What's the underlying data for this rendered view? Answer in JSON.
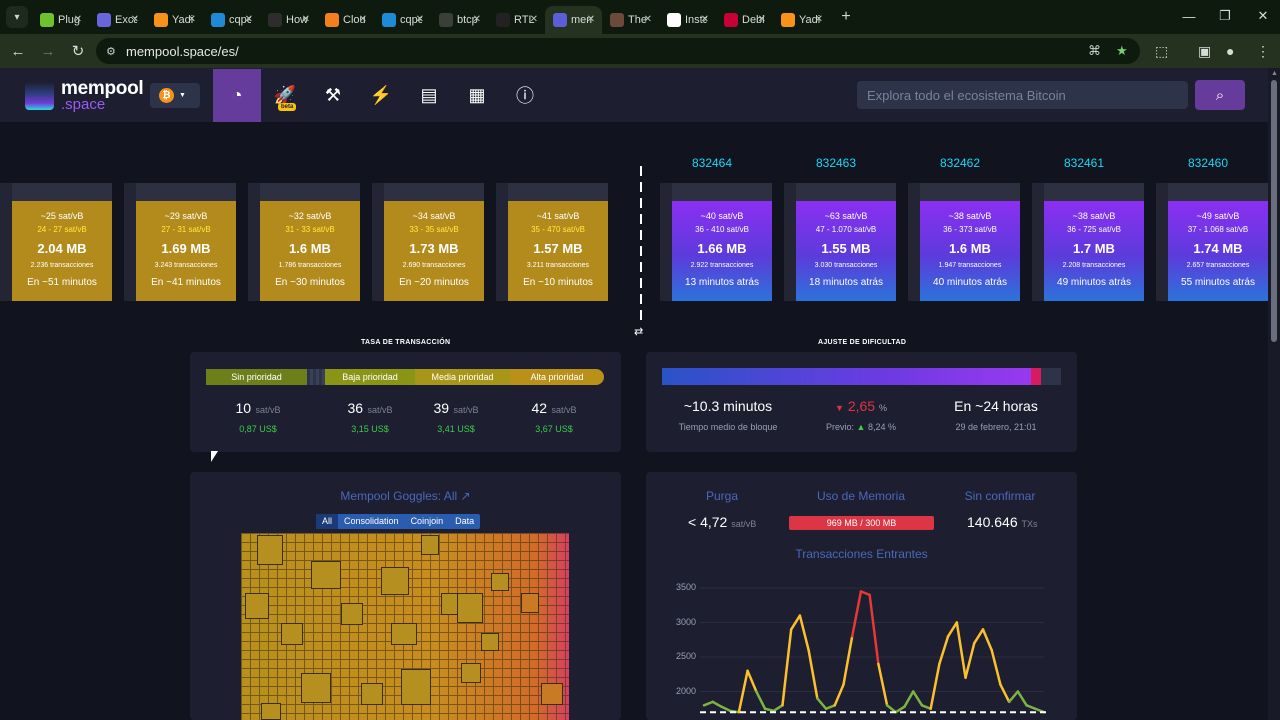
{
  "browser": {
    "tabs": [
      {
        "label": "Plug",
        "icon": "plug-icon",
        "color": "#6fc22c"
      },
      {
        "label": "Exca",
        "icon": "excalidraw-icon",
        "color": "#6965db"
      },
      {
        "label": "Yadi",
        "icon": "yadio-icon",
        "color": "#f7931a"
      },
      {
        "label": "cqpe",
        "icon": "ce-icon",
        "color": "#1f8ad6"
      },
      {
        "label": "How",
        "icon": "github-icon",
        "color": "#2d2d2d"
      },
      {
        "label": "Clou",
        "icon": "cloudflare-icon",
        "color": "#f38020"
      },
      {
        "label": "cqpe",
        "icon": "ce-icon",
        "color": "#1f8ad6"
      },
      {
        "label": "btcp",
        "icon": "btcpay-icon",
        "color": "#3a3f3a"
      },
      {
        "label": "RTL",
        "icon": "rtl-icon",
        "color": "#222"
      },
      {
        "label": "mem",
        "icon": "mempool-icon",
        "color": "#5a5fd6",
        "active": true
      },
      {
        "label": "The",
        "icon": "avatar-icon",
        "color": "#6b4a3a"
      },
      {
        "label": "Insta",
        "icon": "notion-icon",
        "color": "#ffffff"
      },
      {
        "label": "Debi",
        "icon": "debian-icon",
        "color": "#c70036"
      },
      {
        "label": "Yadi",
        "icon": "yadio-icon",
        "color": "#f7931a"
      }
    ],
    "url": "mempool.space/es/"
  },
  "header": {
    "logo_text": "mempool",
    "logo_sub": ".space",
    "network_coin": "₿",
    "beta_label": "beta",
    "search_placeholder": "Explora todo el ecosistema Bitcoin"
  },
  "mempool_blocks": [
    {
      "fee": "~25 sat/vB",
      "range": "24 - 27 sat/vB",
      "size": "2.04 MB",
      "tx": "2.236 transacciones",
      "time": "En ~51 minutos"
    },
    {
      "fee": "~29 sat/vB",
      "range": "27 - 31 sat/vB",
      "size": "1.69 MB",
      "tx": "3.243 transacciones",
      "time": "En ~41 minutos"
    },
    {
      "fee": "~32 sat/vB",
      "range": "31 - 33 sat/vB",
      "size": "1.6 MB",
      "tx": "1.786 transacciones",
      "time": "En ~30 minutos"
    },
    {
      "fee": "~34 sat/vB",
      "range": "33 - 35 sat/vB",
      "size": "1.73 MB",
      "tx": "2.690 transacciones",
      "time": "En ~20 minutos"
    },
    {
      "fee": "~41 sat/vB",
      "range": "35 - 470 sat/vB",
      "size": "1.57 MB",
      "tx": "3.211 transacciones",
      "time": "En ~10 minutos"
    }
  ],
  "mined_blocks": [
    {
      "height": "832464",
      "fee": "~40 sat/vB",
      "range": "36 - 410 sat/vB",
      "size": "1.66 MB",
      "tx": "2.922 transacciones",
      "time": "13 minutos atrás"
    },
    {
      "height": "832463",
      "fee": "~63 sat/vB",
      "range": "47 - 1.070 sat/vB",
      "size": "1.55 MB",
      "tx": "3.030 transacciones",
      "time": "18 minutos atrás"
    },
    {
      "height": "832462",
      "fee": "~38 sat/vB",
      "range": "36 - 373 sat/vB",
      "size": "1.6 MB",
      "tx": "1.947 transacciones",
      "time": "40 minutos atrás"
    },
    {
      "height": "832461",
      "fee": "~38 sat/vB",
      "range": "36 - 725 sat/vB",
      "size": "1.7 MB",
      "tx": "2.208 transacciones",
      "time": "49 minutos atrás"
    },
    {
      "height": "832460",
      "fee": "~49 sat/vB",
      "range": "37 - 1.068 sat/vB",
      "size": "1.74 MB",
      "tx": "2.657 transacciones",
      "time": "55 minutos atrás"
    }
  ],
  "fees": {
    "title": "Tasa de transacción",
    "segments": [
      "Sin prioridad",
      "Baja prioridad",
      "Media prioridad",
      "Alta prioridad"
    ],
    "unit": "sat/vB",
    "values": [
      {
        "sat": "10",
        "usd": "0,87 US$"
      },
      {
        "sat": "36",
        "usd": "3,15 US$"
      },
      {
        "sat": "39",
        "usd": "3,41 US$"
      },
      {
        "sat": "42",
        "usd": "3,67 US$"
      }
    ]
  },
  "difficulty": {
    "title": "Ajuste de dificultad",
    "progress_percent": 95,
    "block_time": "~10.3 minutos",
    "block_time_label": "Tiempo medio de bloque",
    "change_arrow": "▼",
    "change": "2,65",
    "change_unit": "%",
    "previous_label": "Previo:",
    "previous_arrow": "▲",
    "previous": "8,24",
    "previous_unit": "%",
    "eta": "En ~24 horas",
    "eta_date": "29 de febrero, 21:01"
  },
  "goggles": {
    "title": "Mempool Goggles: All",
    "tabs": [
      "All",
      "Consolidation",
      "Coinjoin",
      "Data"
    ]
  },
  "memory": {
    "purge_label": "Purga",
    "purge_value": "< 4,72",
    "purge_unit": "sat/vB",
    "usage_label": "Uso de Memoria",
    "usage_value": "969 MB / 300 MB",
    "unconfirmed_label": "Sin confirmar",
    "unconfirmed_value": "140.646",
    "unconfirmed_unit": "TXs"
  },
  "chart_data": {
    "type": "line",
    "title": "Transacciones Entrantes",
    "yticks": [
      "3500",
      "3000",
      "2500",
      "2000"
    ],
    "ylim": [
      1700,
      3700
    ],
    "values": [
      1800,
      1850,
      1780,
      1720,
      1700,
      2300,
      2000,
      1750,
      1720,
      1800,
      2900,
      3100,
      2600,
      1900,
      1750,
      1800,
      2100,
      2800,
      3450,
      3400,
      2400,
      1800,
      1700,
      1780,
      2000,
      1800,
      1750,
      2400,
      2800,
      3000,
      2200,
      2700,
      2900,
      2600,
      2100,
      1850,
      2000,
      1800,
      1750,
      1700
    ],
    "threshold": 1700,
    "colors": {
      "low": "#7cb342",
      "mid": "#fbc02d",
      "high": "#e53935"
    }
  }
}
